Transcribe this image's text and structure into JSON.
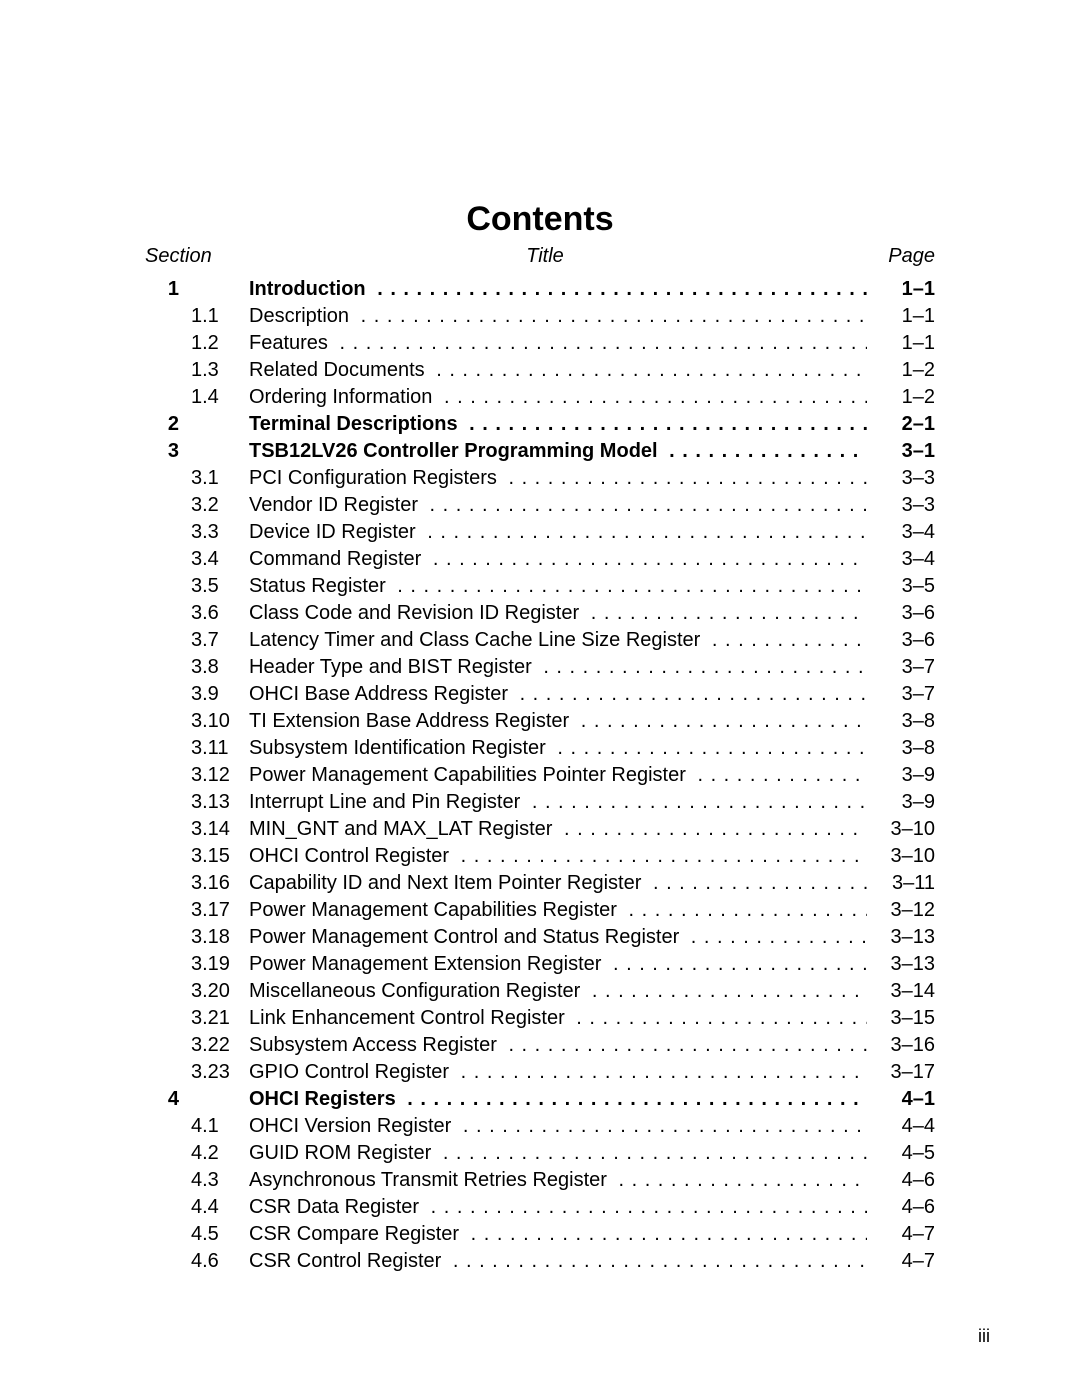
{
  "title": "Contents",
  "headers": {
    "section": "Section",
    "title": "Title",
    "page": "Page"
  },
  "footer": "iii",
  "toc": [
    {
      "type": "main",
      "sec": "1",
      "title": "Introduction",
      "page": "1–1"
    },
    {
      "type": "sub",
      "sub": "1.1",
      "title": "Description",
      "page": "1–1"
    },
    {
      "type": "sub",
      "sub": "1.2",
      "title": "Features",
      "page": "1–1"
    },
    {
      "type": "sub",
      "sub": "1.3",
      "title": "Related Documents",
      "page": "1–2"
    },
    {
      "type": "sub",
      "sub": "1.4",
      "title": "Ordering Information",
      "page": "1–2"
    },
    {
      "type": "main",
      "sec": "2",
      "title": "Terminal Descriptions",
      "page": "2–1"
    },
    {
      "type": "main",
      "sec": "3",
      "title": "TSB12LV26 Controller Programming Model",
      "page": "3–1"
    },
    {
      "type": "sub",
      "sub": "3.1",
      "title": "PCI Configuration Registers",
      "page": "3–3"
    },
    {
      "type": "sub",
      "sub": "3.2",
      "title": "Vendor ID Register",
      "page": "3–3"
    },
    {
      "type": "sub",
      "sub": "3.3",
      "title": "Device ID Register",
      "page": "3–4"
    },
    {
      "type": "sub",
      "sub": "3.4",
      "title": "Command Register",
      "page": "3–4"
    },
    {
      "type": "sub",
      "sub": "3.5",
      "title": "Status Register",
      "page": "3–5"
    },
    {
      "type": "sub",
      "sub": "3.6",
      "title": "Class Code and Revision ID Register",
      "page": "3–6"
    },
    {
      "type": "sub",
      "sub": "3.7",
      "title": "Latency Timer and Class Cache Line Size Register",
      "page": "3–6"
    },
    {
      "type": "sub",
      "sub": "3.8",
      "title": "Header Type and BIST Register",
      "page": "3–7"
    },
    {
      "type": "sub",
      "sub": "3.9",
      "title": "OHCI Base Address Register",
      "page": "3–7"
    },
    {
      "type": "sub",
      "sub": "3.10",
      "title": "TI Extension Base Address Register",
      "page": "3–8"
    },
    {
      "type": "sub",
      "sub": "3.11",
      "title": "Subsystem Identification Register",
      "page": "3–8"
    },
    {
      "type": "sub",
      "sub": "3.12",
      "title": "Power Management Capabilities Pointer Register",
      "page": "3–9"
    },
    {
      "type": "sub",
      "sub": "3.13",
      "title": "Interrupt Line and Pin Register",
      "page": "3–9"
    },
    {
      "type": "sub",
      "sub": "3.14",
      "title": "MIN_GNT and MAX_LAT Register",
      "page": "3–10"
    },
    {
      "type": "sub",
      "sub": "3.15",
      "title": "OHCI Control Register",
      "page": "3–10"
    },
    {
      "type": "sub",
      "sub": "3.16",
      "title": "Capability ID and Next Item Pointer Register",
      "page": "3–11"
    },
    {
      "type": "sub",
      "sub": "3.17",
      "title": "Power Management Capabilities Register",
      "page": "3–12"
    },
    {
      "type": "sub",
      "sub": "3.18",
      "title": "Power Management Control and Status Register",
      "page": "3–13"
    },
    {
      "type": "sub",
      "sub": "3.19",
      "title": "Power Management Extension Register",
      "page": "3–13"
    },
    {
      "type": "sub",
      "sub": "3.20",
      "title": "Miscellaneous Configuration Register",
      "page": "3–14"
    },
    {
      "type": "sub",
      "sub": "3.21",
      "title": "Link Enhancement Control Register",
      "page": "3–15"
    },
    {
      "type": "sub",
      "sub": "3.22",
      "title": "Subsystem Access Register",
      "page": "3–16"
    },
    {
      "type": "sub",
      "sub": "3.23",
      "title": "GPIO Control Register",
      "page": "3–17"
    },
    {
      "type": "main",
      "sec": "4",
      "title": "OHCI Registers",
      "page": "4–1"
    },
    {
      "type": "sub",
      "sub": "4.1",
      "title": "OHCI Version Register",
      "page": "4–4"
    },
    {
      "type": "sub",
      "sub": "4.2",
      "title": "GUID ROM Register",
      "page": "4–5"
    },
    {
      "type": "sub",
      "sub": "4.3",
      "title": "Asynchronous Transmit Retries Register",
      "page": "4–6"
    },
    {
      "type": "sub",
      "sub": "4.4",
      "title": "CSR Data Register",
      "page": "4–6"
    },
    {
      "type": "sub",
      "sub": "4.5",
      "title": "CSR Compare Register",
      "page": "4–7"
    },
    {
      "type": "sub",
      "sub": "4.6",
      "title": "CSR Control Register",
      "page": "4–7"
    }
  ]
}
